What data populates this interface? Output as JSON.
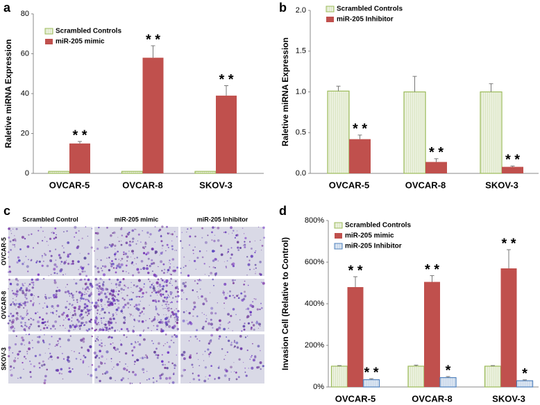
{
  "chart_data": [
    {
      "type": "bar",
      "panel_label": "a",
      "y_label": "Raletive miRNA Expression",
      "categories": [
        "OVCAR-5",
        "OVCAR-8",
        "SKOV-3"
      ],
      "series": [
        {
          "name": "Scrambled Controls",
          "color": "#9bbb59",
          "fill_style": "hatched",
          "values": [
            1,
            1,
            1
          ]
        },
        {
          "name": "miR-205 mimic",
          "color": "#c0504d",
          "fill_style": "solid",
          "values": [
            15,
            58,
            39
          ],
          "errors": [
            1,
            6,
            5
          ],
          "annotations": [
            "* *",
            "* *",
            "* *"
          ]
        }
      ],
      "ylim": [
        0,
        80
      ],
      "yticks": [
        0,
        20,
        40,
        60,
        80
      ]
    },
    {
      "type": "bar",
      "panel_label": "b",
      "y_label": "Raletive miRNA Expression",
      "categories": [
        "OVCAR-5",
        "OVCAR-8",
        "SKOV-3"
      ],
      "series": [
        {
          "name": "Scrambled Controls",
          "color": "#9bbb59",
          "fill_style": "hatched",
          "values": [
            1.01,
            1.0,
            1.0
          ],
          "errors": [
            0.06,
            0.19,
            0.1
          ]
        },
        {
          "name": "miR-205 Inhibitor",
          "color": "#c0504d",
          "fill_style": "solid",
          "values": [
            0.42,
            0.14,
            0.08
          ],
          "errors": [
            0.05,
            0.04,
            0.01
          ],
          "annotations": [
            "* *",
            "* *",
            "* *"
          ]
        }
      ],
      "ylim": [
        0,
        2
      ],
      "yticks": [
        {
          "value": 0,
          "label": "0.0"
        },
        0.5,
        {
          "value": 1,
          "label": "1.0"
        },
        1.5,
        {
          "value": 2,
          "label": "2.0"
        }
      ]
    },
    {
      "type": "bar",
      "panel_label": "d",
      "y_label": "Invasion Cell (Relative to Control)",
      "categories": [
        "OVCAR-5",
        "OVCAR-8",
        "SKOV-3"
      ],
      "series": [
        {
          "name": "Scrambled Controls",
          "color": "#9bbb59",
          "fill_style": "hatched",
          "values": [
            100,
            100,
            100
          ],
          "errors": [
            3,
            5,
            3
          ]
        },
        {
          "name": "miR-205 mimic",
          "color": "#c0504d",
          "fill_style": "solid",
          "values": [
            480,
            505,
            570
          ],
          "errors": [
            50,
            30,
            90
          ],
          "annotations": [
            "* *",
            "* *",
            "* *"
          ]
        },
        {
          "name": "miR-205 Inhibitor",
          "color": "#4f81bd",
          "fill_style": "hatched",
          "values": [
            35,
            45,
            30
          ],
          "errors": [
            5,
            5,
            4
          ],
          "annotations": [
            "* *",
            "*",
            "*"
          ]
        }
      ],
      "ylim": [
        0,
        800
      ],
      "yticks": [
        {
          "value": 0,
          "label": "0%"
        },
        {
          "value": 200,
          "label": "200%"
        },
        {
          "value": 400,
          "label": "400%"
        },
        {
          "value": 600,
          "label": "600%"
        },
        {
          "value": 800,
          "label": "800%"
        }
      ]
    }
  ],
  "image_panel": {
    "panel_label": "c",
    "columns": [
      "Scrambled Control",
      "miR-205 mimic",
      "miR-205 Inhibitor"
    ],
    "rows": [
      "OVCAR-5",
      "OVCAR-8",
      "SKOV-3"
    ]
  }
}
